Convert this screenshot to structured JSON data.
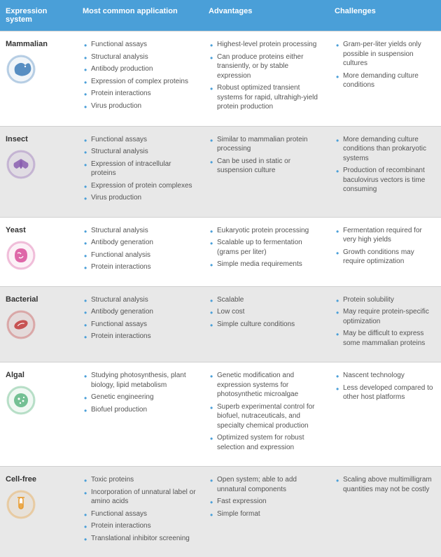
{
  "columns": {
    "system": "Expression system",
    "application": "Most common application",
    "advantages": "Advantages",
    "challenges": "Challenges"
  },
  "header": {
    "bg_color": "#4a9fd8",
    "text_color": "#ffffff",
    "font_size": 11,
    "font_weight": "bold"
  },
  "row_colors": {
    "even": "#ffffff",
    "odd": "#e8e8e8"
  },
  "bullet_color": "#4a9fd8",
  "body_font_size": 10,
  "body_text_color": "#555555",
  "icon_size": 44,
  "rows": [
    {
      "name": "Mammalian",
      "icon_color": "#3c7bb8",
      "applications": [
        "Functional assays",
        "Structural analysis",
        "Antibody production",
        "Expression of complex proteins",
        "Protein interactions",
        "Virus production"
      ],
      "advantages": [
        "Highest-level protein processing",
        "Can produce proteins either transiently, or by stable expression",
        "Robust optimized transient systems for rapid, ultrahigh-yield protein production"
      ],
      "challenges": [
        "Gram-per-liter yields only possible in suspension cultures",
        "More demanding culture conditions"
      ]
    },
    {
      "name": "Insect",
      "icon_color": "#8a5fb0",
      "applications": [
        "Functional assays",
        "Structural analysis",
        "Expression of intracellular proteins",
        "Expression of protein complexes",
        "Virus production"
      ],
      "advantages": [
        "Similar to mammalian protein processing",
        "Can be used in static or suspension culture"
      ],
      "challenges": [
        "More demanding culture conditions than prokaryotic systems",
        "Production of recombinant baculovirus vectors is time consuming"
      ]
    },
    {
      "name": "Yeast",
      "icon_color": "#d84f9a",
      "applications": [
        "Structural analysis",
        "Antibody generation",
        "Functional analysis",
        "Protein interactions"
      ],
      "advantages": [
        "Eukaryotic protein processing",
        "Scalable up to fermentation (grams per liter)",
        "Simple media requirements"
      ],
      "challenges": [
        "Fermentation required for very high yields",
        "Growth conditions may require optimization"
      ]
    },
    {
      "name": "Bacterial",
      "icon_color": "#c23b3b",
      "applications": [
        "Structural analysis",
        "Antibody generation",
        "Functional assays",
        "Protein interactions"
      ],
      "advantages": [
        "Scalable",
        "Low cost",
        "Simple culture conditions"
      ],
      "challenges": [
        "Protein solubility",
        "May require protein-specific optimization",
        "May be difficult to express some mammalian proteins"
      ]
    },
    {
      "name": "Algal",
      "icon_color": "#3fa86b",
      "applications": [
        "Studying photosynthesis, plant biology, lipid metabolism",
        "Genetic engineering",
        "Biofuel production"
      ],
      "advantages": [
        "Genetic modification and expression systems for photosynthetic microalgae",
        "Superb experimental control for biofuel, nutraceuticals, and specialty chemical production",
        "Optimized system for robust selection and expression"
      ],
      "challenges": [
        "Nascent technology",
        "Less developed compared to other host platforms"
      ]
    },
    {
      "name": "Cell-free",
      "icon_color": "#e89b2e",
      "applications": [
        "Toxic proteins",
        "Incorporation of unnatural label or amino acids",
        "Functional assays",
        "Protein interactions",
        "Translational inhibitor screening"
      ],
      "advantages": [
        "Open system; able to add unnatural components",
        "Fast expression",
        "Simple format"
      ],
      "challenges": [
        "Scaling above multimilligram quantities may not be costly"
      ]
    }
  ]
}
